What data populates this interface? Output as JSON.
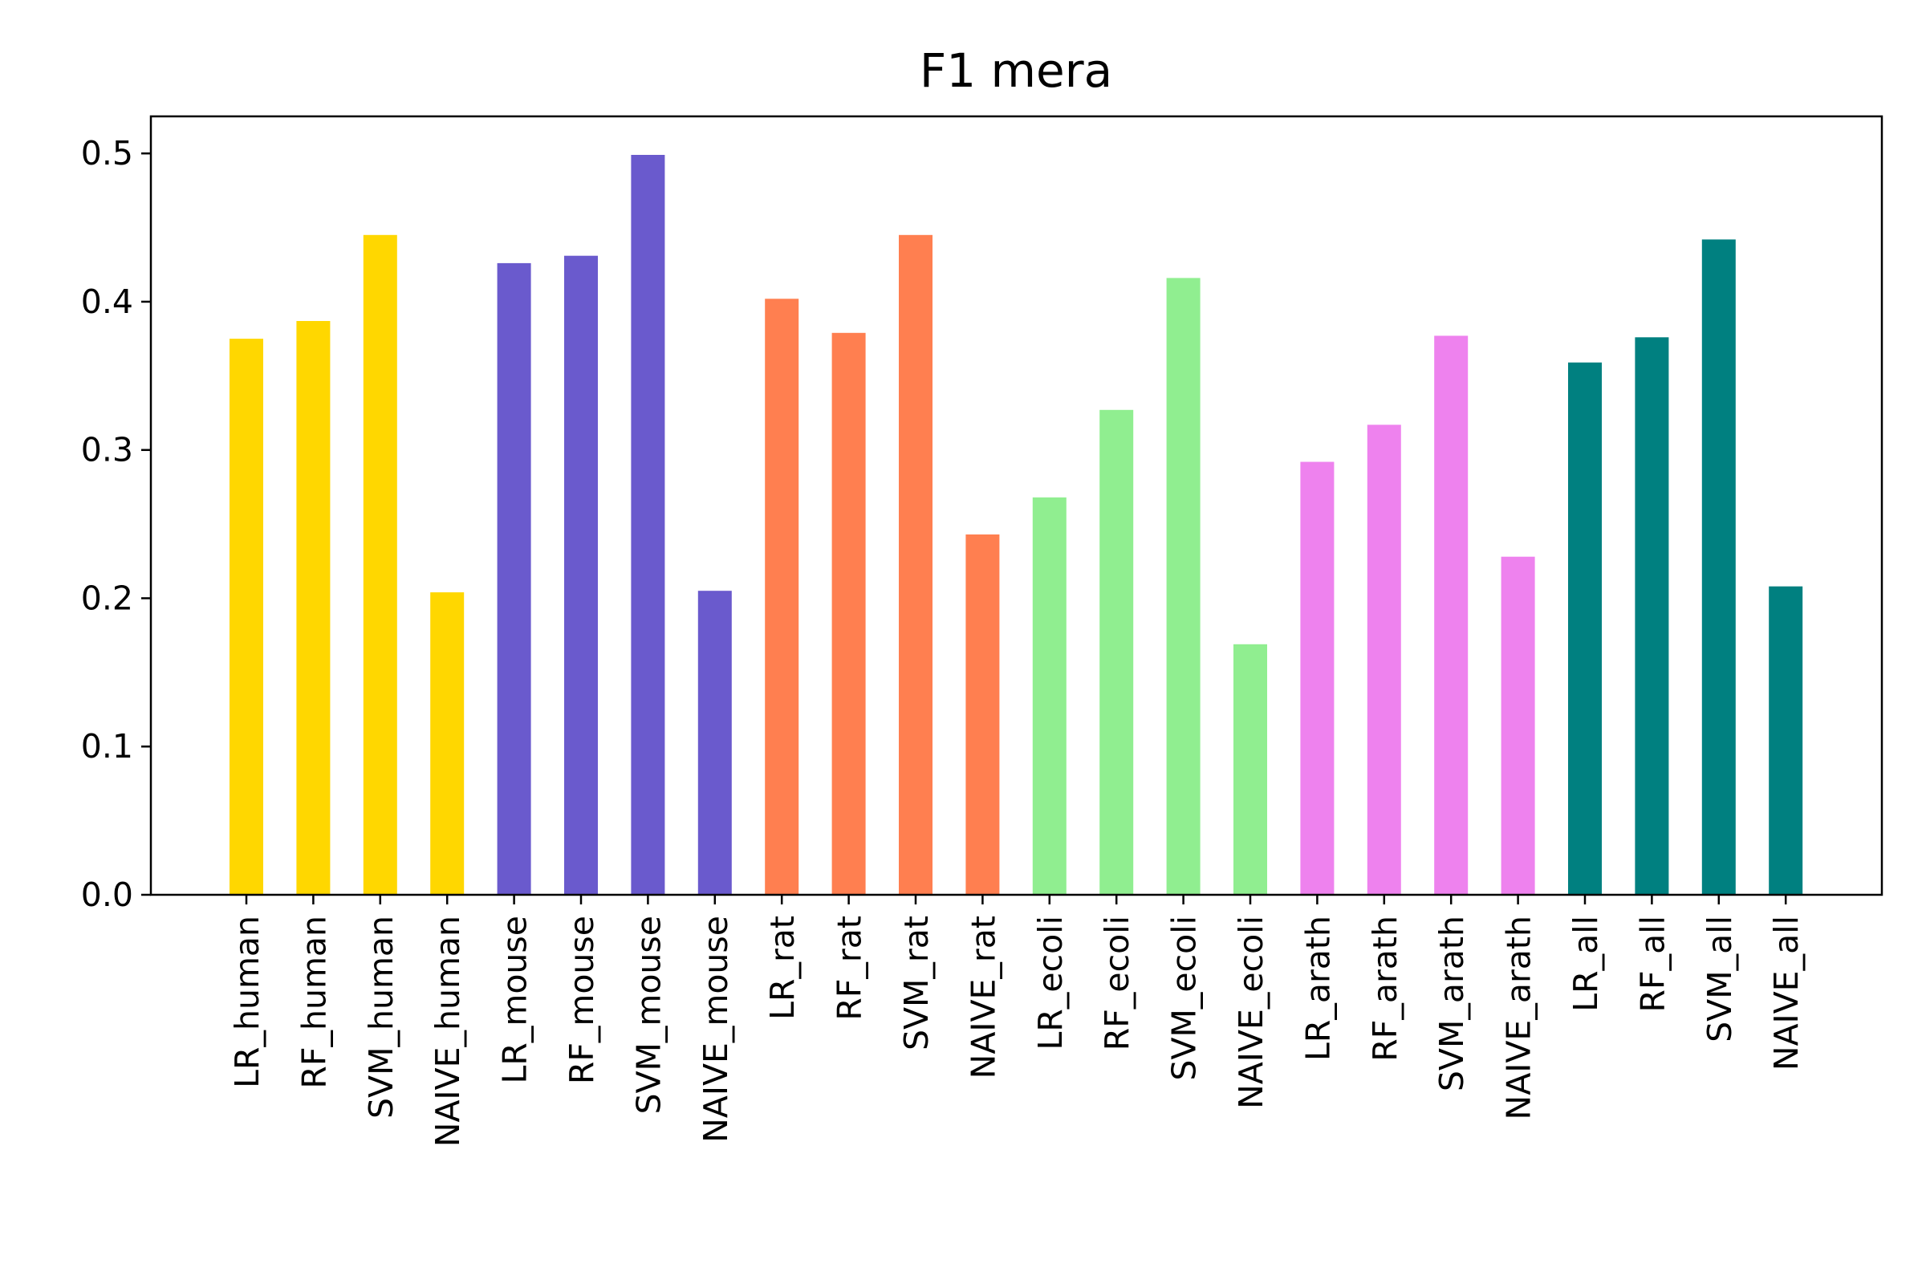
{
  "chart_data": {
    "type": "bar",
    "title": "F1 mera",
    "xlabel": "",
    "ylabel": "",
    "ylim": [
      0,
      0.525
    ],
    "yticks": [
      "0.0",
      "0.1",
      "0.2",
      "0.3",
      "0.4",
      "0.5"
    ],
    "ytick_values": [
      0.0,
      0.1,
      0.2,
      0.3,
      0.4,
      0.5
    ],
    "grid": false,
    "categories": [
      "LR_human",
      "RF_human",
      "SVM_human",
      "NAIVE_human",
      "LR_mouse",
      "RF_mouse",
      "SVM_mouse",
      "NAIVE_mouse",
      "LR_rat",
      "RF_rat",
      "SVM_rat",
      "NAIVE_rat",
      "LR_ecoli",
      "RF_ecoli",
      "SVM_ecoli",
      "NAIVE_ecoli",
      "LR_arath",
      "RF_arath",
      "SVM_arath",
      "NAIVE_arath",
      "LR_all",
      "RF_all",
      "SVM_all",
      "NAIVE_all"
    ],
    "values": [
      0.375,
      0.387,
      0.445,
      0.204,
      0.426,
      0.431,
      0.499,
      0.205,
      0.402,
      0.379,
      0.445,
      0.243,
      0.268,
      0.327,
      0.416,
      0.169,
      0.292,
      0.317,
      0.377,
      0.228,
      0.359,
      0.376,
      0.442,
      0.208
    ],
    "colors": [
      "#FFD700",
      "#FFD700",
      "#FFD700",
      "#FFD700",
      "#6A5ACD",
      "#6A5ACD",
      "#6A5ACD",
      "#6A5ACD",
      "#FF7F50",
      "#FF7F50",
      "#FF7F50",
      "#FF7F50",
      "#90EE90",
      "#90EE90",
      "#90EE90",
      "#90EE90",
      "#EE82EE",
      "#EE82EE",
      "#EE82EE",
      "#EE82EE",
      "#008080",
      "#008080",
      "#008080",
      "#008080"
    ]
  }
}
